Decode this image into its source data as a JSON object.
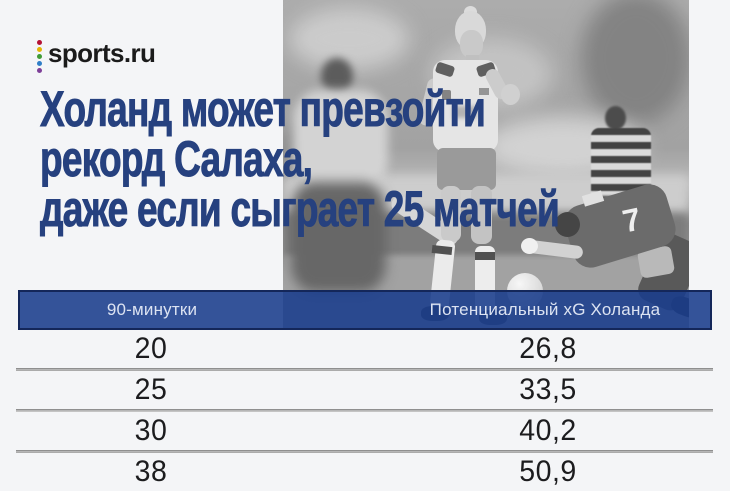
{
  "brand": {
    "name": "sports.ru",
    "dot_colors": [
      "#b51235",
      "#e3b505",
      "#3f9b35",
      "#2f7ec7",
      "#7d3f98"
    ]
  },
  "headline": {
    "line1": "Холанд может превзойти",
    "line2": "рекорд Салаха,",
    "line3": "даже если сыграет 25 матчей"
  },
  "photo": {
    "fallen_player_number": "7"
  },
  "table": {
    "header": {
      "col1": "90-минутки",
      "col2": "Потенциальный xG Холанда"
    },
    "rows": [
      {
        "minutes": "20",
        "xg": "26,8"
      },
      {
        "minutes": "25",
        "xg": "33,5"
      },
      {
        "minutes": "30",
        "xg": "40,2"
      },
      {
        "minutes": "38",
        "xg": "50,9"
      }
    ]
  },
  "chart_data": {
    "type": "table",
    "title": "Холанд может превзойти рекорд Салаха, даже если сыграет 25 матчей",
    "columns": [
      "90-минутки",
      "Потенциальный xG Холанда"
    ],
    "rows": [
      [
        20,
        26.8
      ],
      [
        25,
        33.5
      ],
      [
        30,
        40.2
      ],
      [
        38,
        50.9
      ]
    ]
  },
  "colors": {
    "page_bg": "#f4f5f7",
    "headline_text": "#26417f",
    "header_bar_fill": "rgba(25,60,140,0.88)",
    "header_bar_border": "#14275a",
    "header_text": "#dce3f2",
    "row_text": "#1c1c1e",
    "separator": "#8f8f8f"
  }
}
